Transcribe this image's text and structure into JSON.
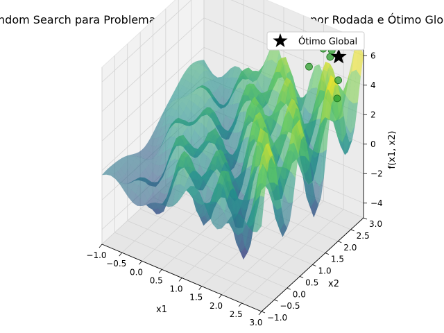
{
  "chart_data": {
    "type": "surface3d",
    "title": "Random Search para Problemas de maximizacao - Ótimos por Rodada e Ótimo Global",
    "xlabel": "x1",
    "ylabel": "x2",
    "zlabel": "f(x1, x2)",
    "x_ticks": [
      "−1.0",
      "−0.5",
      "0.0",
      "0.5",
      "1.0",
      "1.5",
      "2.0",
      "2.5",
      "3.0"
    ],
    "y_ticks": [
      "−1.0",
      "−0.5",
      "0.0",
      "0.5",
      "1.0",
      "1.5",
      "2.0",
      "2.5",
      "3.0"
    ],
    "z_ticks": [
      "−4",
      "−2",
      "0",
      "2",
      "4",
      "6"
    ],
    "xlim": [
      -1.0,
      3.0
    ],
    "ylim": [
      -1.0,
      3.0
    ],
    "zlim": [
      -5.0,
      7.0
    ],
    "colormap": [
      "#440154",
      "#3b528b",
      "#21918c",
      "#5ec962",
      "#fde725"
    ],
    "surface_alpha": 0.6,
    "grid": true,
    "legend": {
      "position": "top-right",
      "entries": [
        {
          "label": "Ótimo Global",
          "marker": "star",
          "color": "#000000"
        }
      ]
    },
    "round_optima": {
      "color": "#2ca02c",
      "points": [
        {
          "x": 2.45,
          "y": 2.55,
          "z": 6.0
        },
        {
          "x": 2.15,
          "y": 2.75,
          "z": 5.9
        },
        {
          "x": 2.3,
          "y": 2.85,
          "z": 5.8
        },
        {
          "x": 2.05,
          "y": 2.35,
          "z": 5.2
        },
        {
          "x": 2.75,
          "y": 2.4,
          "z": 5.0
        },
        {
          "x": 2.85,
          "y": 2.2,
          "z": 4.2
        }
      ]
    },
    "global_optimum": {
      "x": 2.62,
      "y": 2.62,
      "z": 6.1
    }
  }
}
